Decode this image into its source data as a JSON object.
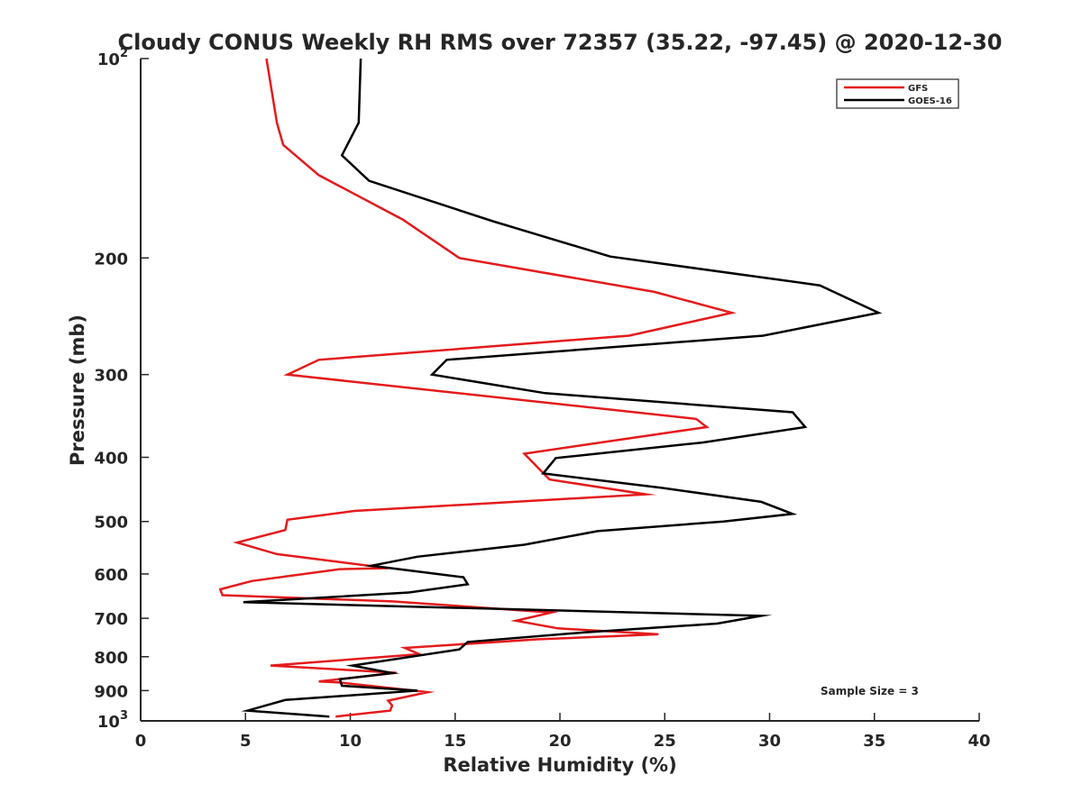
{
  "chart_data": {
    "type": "line",
    "title": "Cloudy CONUS Weekly RH RMS over 72357 (35.22, -97.45) @ 2020-12-30",
    "xlabel": "Relative Humidity (%)",
    "ylabel": "Pressure (mb)",
    "xlim": [
      0,
      40
    ],
    "ylim": [
      100,
      1000
    ],
    "y_scale": "log",
    "y_reversed": true,
    "grid": false,
    "legend_position": "top-right",
    "x_ticks": [
      0,
      5,
      10,
      15,
      20,
      25,
      30,
      35,
      40
    ],
    "x_tick_labels": [
      "0",
      "5",
      "10",
      "15",
      "20",
      "25",
      "30",
      "35",
      "40"
    ],
    "y_ticks": [
      100,
      200,
      300,
      400,
      500,
      600,
      700,
      800,
      900,
      1000
    ],
    "y_tick_labels": [
      {
        "base": "10",
        "exp": "2"
      },
      {
        "base": "200",
        "exp": ""
      },
      {
        "base": "300",
        "exp": ""
      },
      {
        "base": "400",
        "exp": ""
      },
      {
        "base": "500",
        "exp": ""
      },
      {
        "base": "600",
        "exp": ""
      },
      {
        "base": "700",
        "exp": ""
      },
      {
        "base": "800",
        "exp": ""
      },
      {
        "base": "900",
        "exp": ""
      },
      {
        "base": "10",
        "exp": "3"
      }
    ],
    "annotation": "Sample Size = 3",
    "series": [
      {
        "name": "GFS",
        "color": "#e41a1c",
        "points": [
          [
            6.0,
            100
          ],
          [
            6.5,
            125
          ],
          [
            6.8,
            135
          ],
          [
            8.5,
            150
          ],
          [
            12.5,
            175
          ],
          [
            15.2,
            200
          ],
          [
            24.5,
            225
          ],
          [
            28.2,
            242
          ],
          [
            23.3,
            262
          ],
          [
            8.5,
            285
          ],
          [
            7.0,
            300
          ],
          [
            26.5,
            350
          ],
          [
            27.0,
            360
          ],
          [
            18.3,
            395
          ],
          [
            19.5,
            432
          ],
          [
            24.1,
            455
          ],
          [
            10.2,
            482
          ],
          [
            7.0,
            497
          ],
          [
            6.9,
            515
          ],
          [
            4.6,
            538
          ],
          [
            6.5,
            560
          ],
          [
            11.8,
            588
          ],
          [
            9.5,
            590
          ],
          [
            5.3,
            615
          ],
          [
            3.8,
            633
          ],
          [
            3.9,
            646
          ],
          [
            12.0,
            660
          ],
          [
            19.6,
            686
          ],
          [
            17.9,
            706
          ],
          [
            19.9,
            725
          ],
          [
            24.7,
            740
          ],
          [
            19.0,
            753
          ],
          [
            12.6,
            776
          ],
          [
            13.3,
            793
          ],
          [
            6.2,
            825
          ],
          [
            12.2,
            846
          ],
          [
            8.5,
            872
          ],
          [
            9.5,
            875
          ],
          [
            13.7,
            905
          ],
          [
            11.8,
            932
          ],
          [
            12.0,
            948
          ],
          [
            11.9,
            965
          ],
          [
            9.3,
            985
          ]
        ]
      },
      {
        "name": "GOES-16",
        "color": "#000000",
        "points": [
          [
            10.5,
            100
          ],
          [
            10.4,
            125
          ],
          [
            9.6,
            140
          ],
          [
            10.9,
            153
          ],
          [
            16.8,
            176
          ],
          [
            22.4,
            199
          ],
          [
            32.4,
            220
          ],
          [
            35.2,
            242
          ],
          [
            29.7,
            262
          ],
          [
            14.6,
            285
          ],
          [
            13.9,
            300
          ],
          [
            19.3,
            320
          ],
          [
            31.1,
            342
          ],
          [
            31.7,
            360
          ],
          [
            26.8,
            380
          ],
          [
            19.8,
            401
          ],
          [
            19.2,
            423
          ],
          [
            24.9,
            445
          ],
          [
            29.6,
            467
          ],
          [
            31.1,
            487
          ],
          [
            27.8,
            500
          ],
          [
            21.8,
            517
          ],
          [
            18.3,
            542
          ],
          [
            13.2,
            565
          ],
          [
            11.0,
            583
          ],
          [
            15.4,
            607
          ],
          [
            15.6,
            622
          ],
          [
            12.8,
            640
          ],
          [
            4.9,
            662
          ],
          [
            29.6,
            694
          ],
          [
            27.5,
            713
          ],
          [
            21.2,
            735
          ],
          [
            15.6,
            760
          ],
          [
            15.2,
            780
          ],
          [
            10.1,
            825
          ],
          [
            12.0,
            847
          ],
          [
            9.5,
            865
          ],
          [
            9.6,
            885
          ],
          [
            13.2,
            900
          ],
          [
            6.9,
            930
          ],
          [
            5.1,
            965
          ],
          [
            9.0,
            985
          ]
        ]
      }
    ]
  }
}
